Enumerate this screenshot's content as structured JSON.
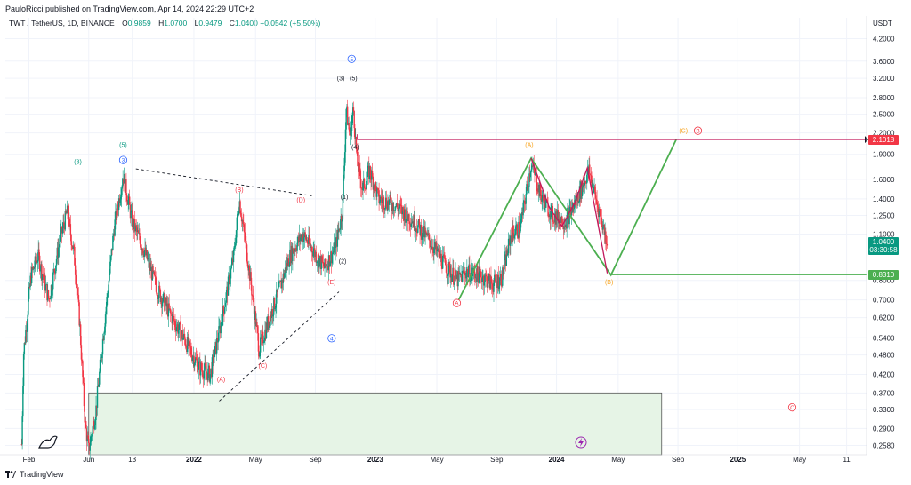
{
  "header": {
    "publisher": "PauloRicci published on TradingView.com, Apr 14, 2024 22:29 UTC+2",
    "symbol": "TWT / TetherUS, 1D, BINANCE",
    "open_label": "O",
    "open": "0.9859",
    "high_label": "H",
    "high": "1.0700",
    "low_label": "L",
    "low": "0.9479",
    "close_label": "C",
    "close": "1.0400",
    "change": "+0.0542 (+5.50%)"
  },
  "footer": {
    "brand": "TradingView"
  },
  "colors": {
    "up": "#089981",
    "down": "#f23645",
    "green_line": "#4caf50",
    "red_line": "#c2185b",
    "orange": "#f7a21b",
    "blue": "#2962ff",
    "zone": "#e6f4e6",
    "grid": "#f0f3fa",
    "purple": "#9c27b0"
  },
  "chart_data": {
    "type": "candlestick",
    "title": "TWT / TetherUS, 1D, BINANCE",
    "currency": "USDT",
    "scale": "log",
    "ylim": [
      0.24,
      4.6
    ],
    "y_ticks": [
      "4.2000",
      "3.6000",
      "3.2000",
      "2.8000",
      "2.5000",
      "2.2000",
      "1.9000",
      "1.6000",
      "1.4000",
      "1.2500",
      "1.1000",
      "0.8000",
      "0.7000",
      "0.6200",
      "0.5400",
      "0.4800",
      "0.4200",
      "0.3700",
      "0.3300",
      "0.2900",
      "0.2580"
    ],
    "y_tick_values": [
      4.2,
      3.6,
      3.2,
      2.8,
      2.5,
      2.2,
      1.9,
      1.6,
      1.4,
      1.25,
      1.1,
      0.8,
      0.7,
      0.62,
      0.54,
      0.48,
      0.42,
      0.37,
      0.33,
      0.29,
      0.258
    ],
    "x_ticks": [
      "Feb",
      "Jun",
      "13",
      "2022",
      "May",
      "Sep",
      "2023",
      "May",
      "Sep",
      "2024",
      "May",
      "Sep",
      "2025",
      "May",
      "11"
    ],
    "x_tick_months": [
      2021.09,
      2021.42,
      2021.66,
      2022.0,
      2022.34,
      2022.67,
      2023.0,
      2023.34,
      2023.67,
      2024.0,
      2024.34,
      2024.67,
      2025.0,
      2025.34,
      2025.6
    ],
    "price_lines": [
      {
        "label": "2.1018",
        "value": 2.1018,
        "color": "#f23645"
      },
      {
        "label": "1.0400",
        "value": 1.04,
        "color": "#089981",
        "sub": "03:30:58"
      },
      {
        "label": "0.8310",
        "value": 0.831,
        "color": "#4caf50"
      }
    ],
    "wave_labels": [
      {
        "text": "(3)",
        "t": 2021.36,
        "p": 1.78,
        "color": "#089981"
      },
      {
        "text": "(5)",
        "t": 2021.61,
        "p": 2.0,
        "color": "#089981"
      },
      {
        "text": "3",
        "t": 2021.61,
        "p": 1.8,
        "color": "#2962ff",
        "circled": true
      },
      {
        "text": "(B)",
        "t": 2022.25,
        "p": 1.47,
        "color": "#f23645"
      },
      {
        "text": "(D)",
        "t": 2022.59,
        "p": 1.37,
        "color": "#f23645"
      },
      {
        "text": "(1)",
        "t": 2022.83,
        "p": 1.4,
        "color": "#131722"
      },
      {
        "text": "(2)",
        "t": 2022.82,
        "p": 0.9,
        "color": "#131722"
      },
      {
        "text": "(E)",
        "t": 2022.76,
        "p": 0.78,
        "color": "#f23645"
      },
      {
        "text": "4",
        "t": 2022.76,
        "p": 0.53,
        "color": "#2962ff",
        "circled": true
      },
      {
        "text": "(A)",
        "t": 2022.15,
        "p": 0.4,
        "color": "#f23645"
      },
      {
        "text": "(C)",
        "t": 2022.38,
        "p": 0.44,
        "color": "#f23645"
      },
      {
        "text": "(3)",
        "t": 2022.81,
        "p": 3.15,
        "color": "#131722"
      },
      {
        "text": "(5)",
        "t": 2022.88,
        "p": 3.15,
        "color": "#131722"
      },
      {
        "text": "5",
        "t": 2022.87,
        "p": 3.6,
        "color": "#2962ff",
        "circled": true
      },
      {
        "text": "(4)",
        "t": 2022.89,
        "p": 1.97,
        "color": "#131722"
      },
      {
        "text": "A",
        "t": 2023.45,
        "p": 0.675,
        "color": "#f23645",
        "circled": true
      },
      {
        "text": "(A)",
        "t": 2023.85,
        "p": 2.0,
        "color": "#f7a21b"
      },
      {
        "text": "(B)",
        "t": 2024.29,
        "p": 0.78,
        "color": "#f7a21b"
      },
      {
        "text": "(C)",
        "t": 2024.7,
        "p": 2.2,
        "color": "#f7a21b"
      },
      {
        "text": "B",
        "t": 2024.78,
        "p": 2.2,
        "color": "#f23645",
        "circled": true
      },
      {
        "text": "C",
        "t": 2025.3,
        "p": 0.33,
        "color": "#f23645",
        "circled": true
      }
    ],
    "green_path": [
      [
        2023.46,
        0.7
      ],
      [
        2023.86,
        1.85
      ],
      [
        2024.3,
        0.83
      ],
      [
        2024.66,
        2.1
      ]
    ],
    "red_path": [
      [
        2023.86,
        1.85
      ],
      [
        2023.96,
        1.32
      ],
      [
        2024.03,
        1.16
      ],
      [
        2024.1,
        1.36
      ],
      [
        2024.17,
        1.73
      ],
      [
        2024.28,
        0.84
      ]
    ],
    "dashed_upper": [
      [
        2021.68,
        1.72
      ],
      [
        2022.65,
        1.43
      ]
    ],
    "dashed_lower": [
      [
        2022.14,
        0.35
      ],
      [
        2022.8,
        0.74
      ]
    ],
    "zone": {
      "t0": 2021.42,
      "t1": 2024.58,
      "p0": 0.24,
      "p1": 0.37
    },
    "ohlc_keyframes": [
      [
        2021.05,
        0.26
      ],
      [
        2021.06,
        0.48
      ],
      [
        2021.1,
        0.82
      ],
      [
        2021.14,
        0.95
      ],
      [
        2021.2,
        0.7
      ],
      [
        2021.26,
        1.05
      ],
      [
        2021.3,
        1.28
      ],
      [
        2021.34,
        0.95
      ],
      [
        2021.37,
        0.6
      ],
      [
        2021.4,
        0.3
      ],
      [
        2021.42,
        0.25
      ],
      [
        2021.46,
        0.33
      ],
      [
        2021.5,
        0.55
      ],
      [
        2021.56,
        1.15
      ],
      [
        2021.61,
        1.65
      ],
      [
        2021.66,
        1.2
      ],
      [
        2021.72,
        1.0
      ],
      [
        2021.8,
        0.75
      ],
      [
        2021.88,
        0.62
      ],
      [
        2021.96,
        0.52
      ],
      [
        2022.03,
        0.44
      ],
      [
        2022.09,
        0.42
      ],
      [
        2022.15,
        0.6
      ],
      [
        2022.22,
        0.95
      ],
      [
        2022.25,
        1.4
      ],
      [
        2022.3,
        0.9
      ],
      [
        2022.36,
        0.5
      ],
      [
        2022.4,
        0.58
      ],
      [
        2022.47,
        0.75
      ],
      [
        2022.53,
        0.95
      ],
      [
        2022.6,
        1.1
      ],
      [
        2022.66,
        0.98
      ],
      [
        2022.72,
        0.87
      ],
      [
        2022.78,
        1.0
      ],
      [
        2022.82,
        1.3
      ],
      [
        2022.84,
        2.6
      ],
      [
        2022.86,
        2.15
      ],
      [
        2022.88,
        2.6
      ],
      [
        2022.9,
        1.8
      ],
      [
        2022.93,
        1.5
      ],
      [
        2022.97,
        1.7
      ],
      [
        2023.02,
        1.4
      ],
      [
        2023.1,
        1.35
      ],
      [
        2023.2,
        1.22
      ],
      [
        2023.3,
        1.05
      ],
      [
        2023.38,
        0.9
      ],
      [
        2023.45,
        0.8
      ],
      [
        2023.5,
        0.85
      ],
      [
        2023.58,
        0.83
      ],
      [
        2023.65,
        0.78
      ],
      [
        2023.7,
        0.82
      ],
      [
        2023.75,
        1.1
      ],
      [
        2023.8,
        1.15
      ],
      [
        2023.86,
        1.78
      ],
      [
        2023.92,
        1.4
      ],
      [
        2023.98,
        1.25
      ],
      [
        2024.05,
        1.2
      ],
      [
        2024.1,
        1.35
      ],
      [
        2024.18,
        1.7
      ],
      [
        2024.22,
        1.38
      ],
      [
        2024.28,
        1.04
      ]
    ]
  }
}
